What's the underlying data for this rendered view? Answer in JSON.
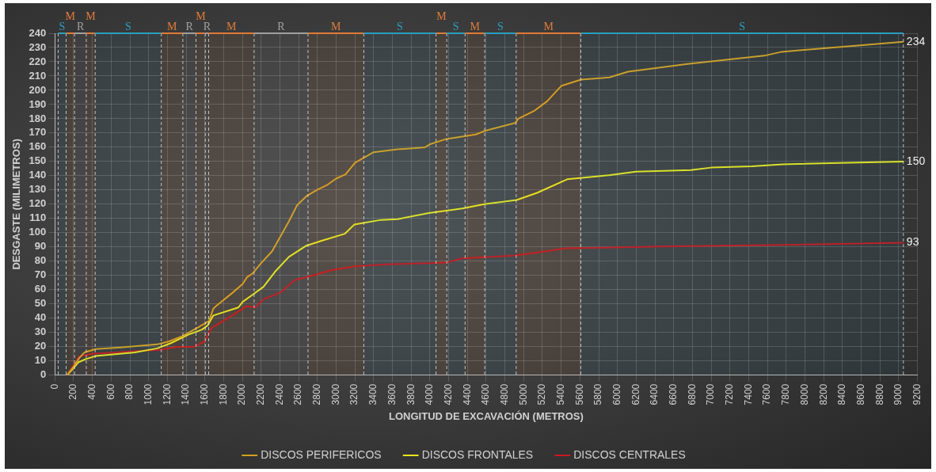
{
  "chart_data": {
    "type": "line",
    "xlabel": "LONGITUD DE EXCAVACIÓN (METROS)",
    "ylabel": "DESGASTE (MILIMETROS)",
    "xlim": [
      0,
      9200
    ],
    "xticks": [
      0,
      200,
      400,
      600,
      800,
      1000,
      1200,
      1400,
      1600,
      1800,
      2000,
      2200,
      2400,
      2600,
      2800,
      3000,
      3200,
      3400,
      3600,
      3800,
      4000,
      4200,
      4400,
      4600,
      4800,
      5000,
      5200,
      5400,
      5600,
      5800,
      6000,
      6200,
      6400,
      6600,
      6800,
      7000,
      7200,
      7400,
      7600,
      7800,
      8000,
      8200,
      8400,
      8600,
      8800,
      9000,
      9200
    ],
    "ylim": [
      0,
      240
    ],
    "yticks": [
      0,
      10,
      20,
      30,
      40,
      50,
      60,
      70,
      80,
      90,
      100,
      110,
      120,
      130,
      140,
      150,
      160,
      170,
      180,
      190,
      200,
      210,
      220,
      230,
      240
    ],
    "grid": true,
    "legend": "bottom",
    "marker": "none",
    "line_style": "solid",
    "series": [
      {
        "name": "DISCOS PERIFERICOS",
        "color": "#d4a020",
        "x": [
          130,
          200,
          260,
          316,
          435,
          700,
          1092,
          1213,
          1361,
          1539,
          1644,
          1690,
          1719,
          1898,
          2003,
          2049,
          2108,
          2197,
          2317,
          2406,
          2496,
          2584,
          2690,
          2795,
          2911,
          3000,
          3100,
          3200,
          3400,
          3655,
          3950,
          3998,
          4165,
          4491,
          4600,
          4909,
          4943,
          5110,
          5252,
          5400,
          5612,
          5913,
          6114,
          6749,
          7585,
          7753,
          9050
        ],
        "values": [
          0,
          6,
          12,
          16,
          18.3,
          19.5,
          21.6,
          23.6,
          27.4,
          34,
          38,
          46.7,
          48.5,
          58,
          64,
          68.7,
          71.4,
          78.4,
          87,
          97.4,
          108,
          119.4,
          126,
          130,
          133.8,
          138,
          141,
          149,
          156.5,
          158.5,
          160,
          162,
          165.6,
          169,
          171.8,
          177,
          180,
          185.4,
          192.4,
          203,
          207.5,
          209,
          213,
          218.5,
          224.5,
          227,
          234
        ],
        "value_labels": [
          null,
          null,
          null,
          null,
          null,
          null,
          null,
          null,
          null,
          null,
          null,
          null,
          null,
          null,
          null,
          null,
          null,
          null,
          null,
          null,
          null,
          null,
          null,
          null,
          null,
          null,
          null,
          null,
          null,
          null,
          null,
          null,
          null,
          null,
          null,
          null,
          null,
          null,
          null,
          null,
          null,
          null,
          null,
          null,
          null,
          null,
          "234"
        ]
      },
      {
        "name": "DISCOS FRONTALES",
        "color": "#e6e61e",
        "x": [
          130,
          200,
          250,
          330,
          435,
          853,
          1092,
          1238,
          1422,
          1570,
          1631,
          1690,
          1957,
          2003,
          2108,
          2225,
          2347,
          2496,
          2676,
          2852,
          3094,
          3195,
          3479,
          3655,
          3989,
          4346,
          4583,
          4926,
          5143,
          5470,
          5910,
          6197,
          6783,
          7000,
          7435,
          7761,
          9050
        ],
        "values": [
          0,
          5,
          9,
          11.3,
          13.4,
          16,
          18.8,
          22.5,
          28.4,
          32,
          35,
          41.9,
          47.5,
          51.5,
          56.4,
          62,
          72.5,
          83,
          90.7,
          94.5,
          99.3,
          105.8,
          109,
          109.5,
          113.8,
          117,
          120,
          123,
          128,
          137.6,
          140.4,
          142.8,
          144,
          145.7,
          146.6,
          148,
          150
        ],
        "value_labels": [
          null,
          null,
          null,
          null,
          null,
          null,
          null,
          null,
          null,
          null,
          null,
          null,
          null,
          null,
          null,
          null,
          null,
          null,
          null,
          null,
          null,
          null,
          null,
          null,
          null,
          null,
          null,
          null,
          null,
          null,
          null,
          null,
          null,
          null,
          null,
          null,
          "150"
        ]
      },
      {
        "name": "DISCOS CENTRALES",
        "color": "#c8181e",
        "x": [
          130,
          200,
          256,
          401,
          853,
          1120,
          1301,
          1480,
          1597,
          1673,
          1840,
          2049,
          2138,
          2225,
          2406,
          2556,
          2735,
          2944,
          3183,
          3538,
          3989,
          4168,
          4346,
          4893,
          5182,
          5436,
          6565,
          7652,
          9050
        ],
        "values": [
          0,
          7,
          13,
          15,
          16.8,
          17.7,
          19.8,
          19.8,
          23.6,
          33.3,
          39.8,
          48.5,
          47.5,
          53.3,
          58,
          66.7,
          69.6,
          73.6,
          76.3,
          77.8,
          78.6,
          79,
          82,
          83.9,
          86.4,
          89,
          90.4,
          91.3,
          93
        ],
        "value_labels": [
          null,
          null,
          null,
          null,
          null,
          null,
          null,
          null,
          null,
          null,
          null,
          null,
          null,
          null,
          null,
          null,
          null,
          null,
          null,
          null,
          null,
          null,
          null,
          null,
          null,
          null,
          null,
          null,
          "93"
        ]
      }
    ],
    "bands": [
      {
        "axis": "x",
        "from": 35,
        "to": 120,
        "label": "S",
        "color": "#2a9fc0"
      },
      {
        "axis": "x",
        "from": 120,
        "to": 210,
        "label": "M",
        "color": "#e07b39"
      },
      {
        "axis": "x",
        "from": 210,
        "to": 335,
        "label": "R",
        "color": "#a0a0a0"
      },
      {
        "axis": "x",
        "from": 335,
        "to": 430,
        "label": "M",
        "color": "#e07b39"
      },
      {
        "axis": "x",
        "from": 430,
        "to": 1135,
        "label": "S",
        "color": "#2a9fc0"
      },
      {
        "axis": "x",
        "from": 1135,
        "to": 1365,
        "label": "M",
        "color": "#e07b39"
      },
      {
        "axis": "x",
        "from": 1365,
        "to": 1505,
        "label": "R",
        "color": "#a0a0a0"
      },
      {
        "axis": "x",
        "from": 1505,
        "to": 1605,
        "label": "M",
        "color": "#e07b39"
      },
      {
        "axis": "x",
        "from": 1605,
        "to": 1640,
        "label": "R",
        "color": "#a0a0a0"
      },
      {
        "axis": "x",
        "from": 1640,
        "to": 2125,
        "label": "M",
        "color": "#e07b39"
      },
      {
        "axis": "x",
        "from": 2125,
        "to": 2700,
        "label": "R",
        "color": "#a0a0a0"
      },
      {
        "axis": "x",
        "from": 2700,
        "to": 3295,
        "label": "M",
        "color": "#e07b39"
      },
      {
        "axis": "x",
        "from": 3295,
        "to": 4065,
        "label": "S",
        "color": "#2a9fc0"
      },
      {
        "axis": "x",
        "from": 4065,
        "to": 4180,
        "label": "M",
        "color": "#e07b39"
      },
      {
        "axis": "x",
        "from": 4180,
        "to": 4375,
        "label": "S",
        "color": "#2a9fc0"
      },
      {
        "axis": "x",
        "from": 4375,
        "to": 4585,
        "label": "M",
        "color": "#e07b39"
      },
      {
        "axis": "x",
        "from": 4585,
        "to": 4920,
        "label": "S",
        "color": "#2a9fc0"
      },
      {
        "axis": "x",
        "from": 4920,
        "to": 5610,
        "label": "M",
        "color": "#e07b39"
      },
      {
        "axis": "x",
        "from": 5610,
        "to": 9050,
        "label": "S",
        "color": "#2a9fc0"
      }
    ]
  }
}
